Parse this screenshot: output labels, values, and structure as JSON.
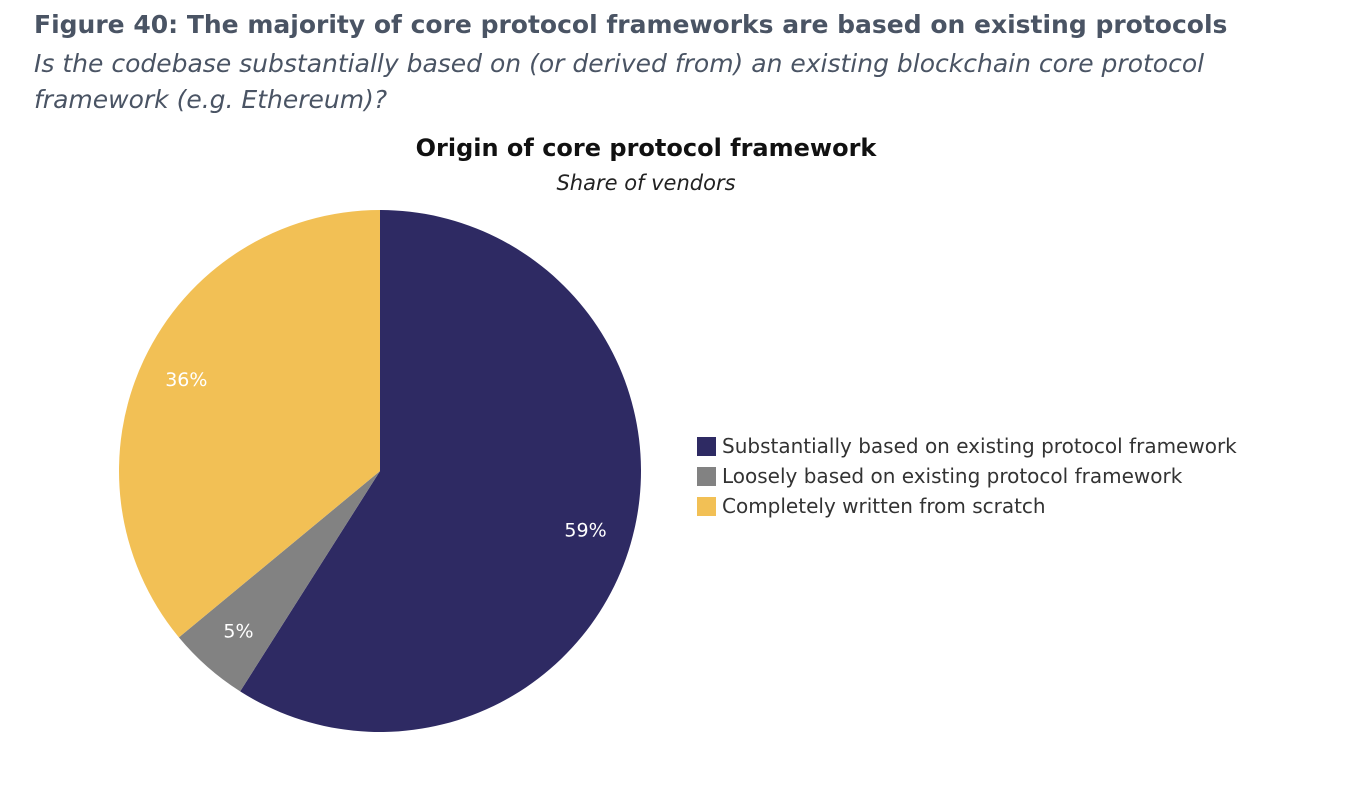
{
  "figure": {
    "title": "Figure 40: The majority of core protocol frameworks are based on existing protocols",
    "subtitle": "Is the codebase substantially based on (or derived from) an existing blockchain core protocol framework (e.g. Ethereum)?"
  },
  "chart_data": {
    "type": "pie",
    "title": "Origin of core protocol framework",
    "subtitle": "Share of vendors",
    "categories": [
      "Substantially based on existing protocol framework",
      "Loosely based on existing protocol framework",
      "Completely written from scratch"
    ],
    "values": [
      59,
      5,
      36
    ],
    "labels": [
      "59%",
      "5%",
      "36%"
    ],
    "colors": [
      "#2e2a63",
      "#828282",
      "#f2c055"
    ],
    "label_color": "#ffffff",
    "start": "12 o'clock",
    "direction": "clockwise",
    "legend_position": "right"
  }
}
